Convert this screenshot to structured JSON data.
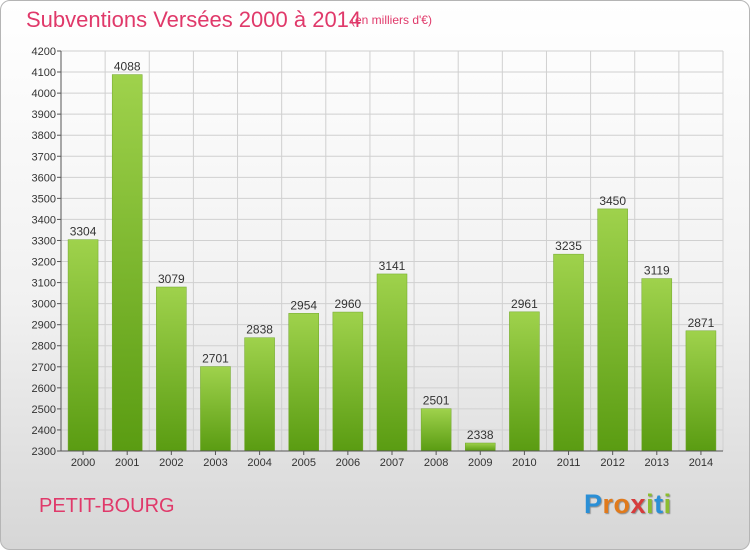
{
  "title": "Subventions Versées 2000 à 2014",
  "subtitle": "(en milliers d'€)",
  "commune": "PETIT-BOURG",
  "logo": {
    "letters": [
      "P",
      "r",
      "o",
      "x",
      "i",
      "t",
      "i"
    ],
    "colors": [
      "#2a8fd6",
      "#e07a1c",
      "#e07a1c",
      "#d63b3b",
      "#8cbd2f",
      "#2a8fd6",
      "#8cbd2f"
    ]
  },
  "colors": {
    "accent": "#e0396a",
    "bar_top": "#9fd24c",
    "bar_bottom": "#5a9c12"
  },
  "chart_data": {
    "type": "bar",
    "categories": [
      "2000",
      "2001",
      "2002",
      "2003",
      "2004",
      "2005",
      "2006",
      "2007",
      "2008",
      "2009",
      "2010",
      "2011",
      "2012",
      "2013",
      "2014"
    ],
    "values": [
      3304,
      4088,
      3079,
      2701,
      2838,
      2954,
      2960,
      3141,
      2501,
      2338,
      2961,
      3235,
      3450,
      3119,
      2871
    ],
    "ylim": [
      2300,
      4200
    ],
    "yticks": [
      2300,
      2400,
      2500,
      2600,
      2700,
      2800,
      2900,
      3000,
      3100,
      3200,
      3300,
      3400,
      3500,
      3600,
      3700,
      3800,
      3900,
      4000,
      4100,
      4200
    ],
    "grid": true,
    "xlabel": "",
    "ylabel": ""
  }
}
